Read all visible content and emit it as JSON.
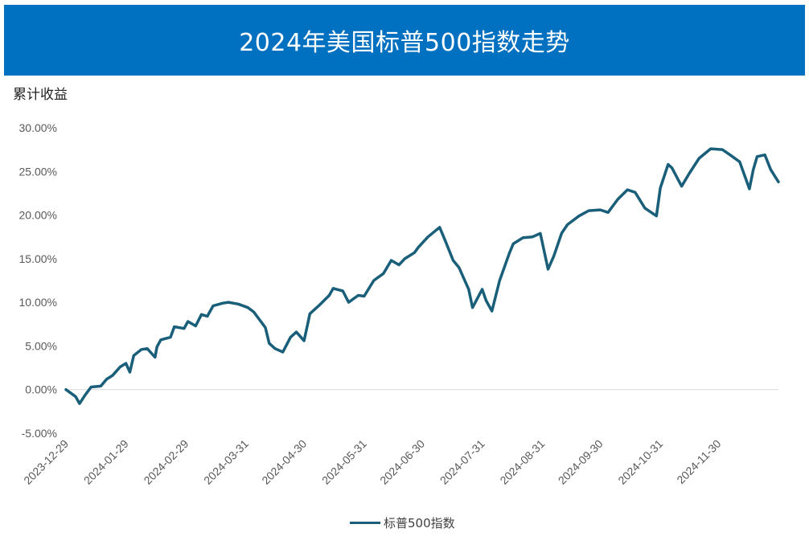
{
  "header": {
    "title": "2024年美国标普500指数走势"
  },
  "chart_data": {
    "type": "line",
    "title": "2024年美国标普500指数走势",
    "ylabel": "累计收益",
    "xlabel": "",
    "ylim": [
      -5,
      30
    ],
    "yticks": [
      "-5.00%",
      "0.00%",
      "5.00%",
      "10.00%",
      "15.00%",
      "20.00%",
      "25.00%",
      "30.00%"
    ],
    "xticks": [
      "2023-12-29",
      "2024-01-29",
      "2024-02-29",
      "2024-03-31",
      "2024-04-30",
      "2024-05-31",
      "2024-06-30",
      "2024-07-31",
      "2024-08-31",
      "2024-09-30",
      "2024-10-31",
      "2024-11-30"
    ],
    "grid": false,
    "legend_position": "bottom",
    "line_color": "#1a5f7a",
    "series": [
      {
        "name": "标普500指数",
        "x": [
          "2023-12-29",
          "2024-01-03",
          "2024-01-05",
          "2024-01-08",
          "2024-01-11",
          "2024-01-16",
          "2024-01-19",
          "2024-01-22",
          "2024-01-24",
          "2024-01-26",
          "2024-01-29",
          "2024-01-31",
          "2024-02-02",
          "2024-02-06",
          "2024-02-09",
          "2024-02-13",
          "2024-02-14",
          "2024-02-16",
          "2024-02-21",
          "2024-02-23",
          "2024-02-28",
          "2024-03-01",
          "2024-03-05",
          "2024-03-08",
          "2024-03-11",
          "2024-03-14",
          "2024-03-19",
          "2024-03-22",
          "2024-03-27",
          "2024-04-01",
          "2024-04-04",
          "2024-04-10",
          "2024-04-12",
          "2024-04-15",
          "2024-04-19",
          "2024-04-23",
          "2024-04-26",
          "2024-04-30",
          "2024-05-03",
          "2024-05-08",
          "2024-05-13",
          "2024-05-15",
          "2024-05-20",
          "2024-05-23",
          "2024-05-28",
          "2024-05-31",
          "2024-06-05",
          "2024-06-10",
          "2024-06-14",
          "2024-06-18",
          "2024-06-21",
          "2024-06-26",
          "2024-06-28",
          "2024-07-03",
          "2024-07-09",
          "2024-07-12",
          "2024-07-16",
          "2024-07-19",
          "2024-07-24",
          "2024-07-26",
          "2024-07-31",
          "2024-08-02",
          "2024-08-05",
          "2024-08-09",
          "2024-08-14",
          "2024-08-16",
          "2024-08-21",
          "2024-08-26",
          "2024-08-30",
          "2024-09-03",
          "2024-09-06",
          "2024-09-10",
          "2024-09-13",
          "2024-09-19",
          "2024-09-24",
          "2024-09-30",
          "2024-10-04",
          "2024-10-09",
          "2024-10-14",
          "2024-10-18",
          "2024-10-23",
          "2024-10-29",
          "2024-10-31",
          "2024-11-04",
          "2024-11-06",
          "2024-11-11",
          "2024-11-15",
          "2024-11-20",
          "2024-11-26",
          "2024-12-02",
          "2024-12-06",
          "2024-12-11",
          "2024-12-16",
          "2024-12-18",
          "2024-12-20",
          "2024-12-24",
          "2024-12-27",
          "2024-12-31"
        ],
        "values": [
          0.0,
          -0.8,
          -1.6,
          -0.6,
          0.3,
          0.4,
          1.2,
          1.6,
          2.1,
          2.6,
          3.0,
          2.0,
          3.9,
          4.6,
          4.7,
          3.7,
          4.9,
          5.7,
          6.0,
          7.2,
          7.0,
          7.8,
          7.3,
          8.6,
          8.4,
          9.6,
          9.9,
          10.0,
          9.8,
          9.4,
          8.9,
          7.1,
          5.3,
          4.7,
          4.3,
          6.0,
          6.6,
          5.6,
          8.7,
          9.7,
          10.8,
          11.6,
          11.3,
          10.0,
          10.8,
          10.7,
          12.5,
          13.3,
          14.8,
          14.3,
          15.0,
          15.7,
          16.3,
          17.5,
          18.6,
          17.0,
          14.8,
          14.0,
          11.5,
          9.4,
          11.5,
          10.2,
          9.0,
          12.5,
          15.6,
          16.7,
          17.4,
          17.5,
          17.9,
          13.8,
          15.3,
          17.9,
          18.9,
          19.9,
          20.5,
          20.6,
          20.3,
          21.8,
          22.9,
          22.6,
          20.8,
          19.9,
          23.1,
          25.8,
          25.4,
          23.3,
          24.8,
          26.5,
          27.6,
          27.5,
          26.9,
          26.1,
          23.0,
          25.2,
          26.7,
          26.9,
          25.2,
          23.8
        ]
      }
    ]
  }
}
